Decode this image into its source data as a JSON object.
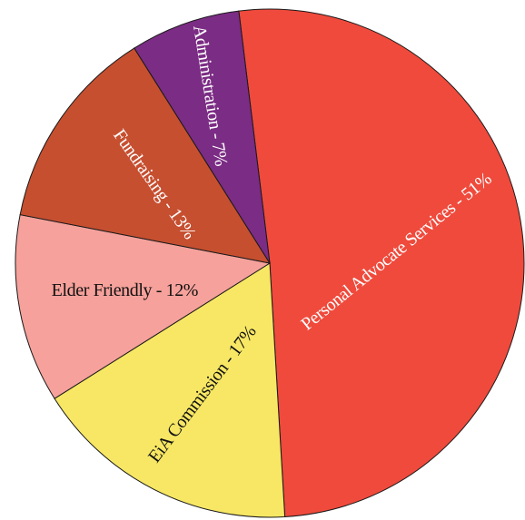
{
  "chart_data": {
    "type": "pie",
    "title": "",
    "slices": [
      {
        "label": "Personal Advocate Services - 51%",
        "value": 51,
        "color": "#ef4a3c",
        "text_color": "#ffffff"
      },
      {
        "label": "EiA Commission - 17%",
        "value": 17,
        "color": "#f7e764",
        "text_color": "#111111"
      },
      {
        "label": "Elder Friendly - 12%",
        "value": 12,
        "color": "#f6a19b",
        "text_color": "#111111"
      },
      {
        "label": "Fundraising - 13%",
        "value": 13,
        "color": "#c64f30",
        "text_color": "#ffffff"
      },
      {
        "label": "Administration - 7%",
        "value": 7,
        "color": "#7b2c84",
        "text_color": "#ffffff"
      }
    ],
    "legend": "none"
  }
}
